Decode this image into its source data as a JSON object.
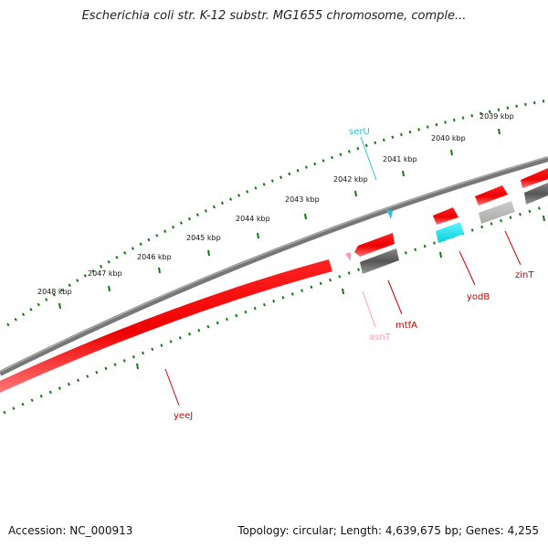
{
  "title": "Escherichia coli str. K-12 substr. MG1655 chromosome, comple...",
  "footer": {
    "accession": "Accession: NC_000913",
    "summary": "Topology: circular; Length: 4,639,675 bp; Genes: 4,255"
  },
  "scale_labels": [
    "2048 kbp",
    "2047 kbp",
    "2046 kbp",
    "2045 kbp",
    "2044 kbp",
    "2043 kbp",
    "2042 kbp",
    "2041 kbp",
    "2040 kbp",
    "2039 kbp"
  ],
  "genes": [
    {
      "name": "serU",
      "color": "#33bbdd"
    },
    {
      "name": "yodB",
      "color": "#cc0000"
    },
    {
      "name": "zinT",
      "color": "#cc0000"
    },
    {
      "name": "mtfA",
      "color": "#cc0000"
    },
    {
      "name": "asnT",
      "color": "#ff99bb"
    },
    {
      "name": "yeeJ",
      "color": "#cc0000"
    }
  ],
  "colors": {
    "backbone": "#777777",
    "ticks": "#117711",
    "forward_gene": "#ee0000",
    "reverse_gene": "#555555",
    "cyan_gene": "#00e5ee"
  }
}
